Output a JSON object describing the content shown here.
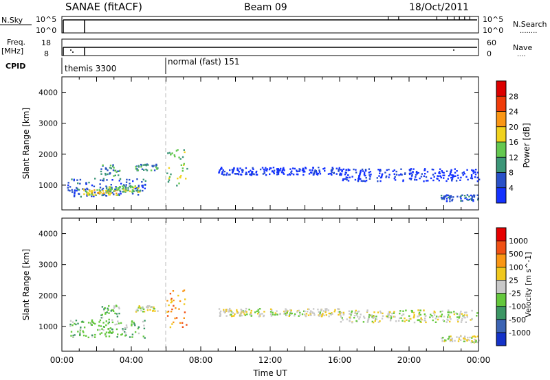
{
  "header": {
    "station": "SANAE (fitACF)",
    "beam": "Beam 09",
    "date": "18/Oct/2011"
  },
  "strip_nsky": {
    "label": "N.Sky",
    "left_ticks": [
      "10^5",
      "10^0"
    ],
    "right_ticks": [
      "10^5",
      "10^0"
    ],
    "right_label": "N.Search",
    "right_label_dots": "........"
  },
  "strip_freq": {
    "label_line1": "Freq.",
    "label_line2": "[MHz]",
    "left_ticks": [
      "18",
      "8"
    ],
    "right_ticks": [
      "60",
      "0"
    ],
    "right_label": "Nave",
    "right_label_dots": "...."
  },
  "cpid": {
    "label": "CPID",
    "segments": [
      {
        "name": "themis 3300",
        "start": 0.0,
        "end": 6.0
      },
      {
        "name": "normal (fast) 151",
        "start": 6.0,
        "end": 24.0
      }
    ]
  },
  "chart_data": [
    {
      "type": "heatmap",
      "panel": "power",
      "xlabel": "",
      "ylabel": "Slant Range [km]",
      "xlim": [
        0,
        24
      ],
      "ylim": [
        200,
        4500
      ],
      "yticks": [
        "1000",
        "2000",
        "3000",
        "4000"
      ],
      "colorbar": {
        "label": "Power [dB]",
        "tick_labels": [
          "4",
          "8",
          "12",
          "16",
          "20",
          "24",
          "28"
        ],
        "colors": [
          "#1432ff",
          "#2850c8",
          "#3c9678",
          "#64c850",
          "#f0d21e",
          "#fa9614",
          "#f03c0a",
          "#dc0000"
        ]
      },
      "regions": [
        {
          "t0": 0.3,
          "t1": 4.8,
          "r0": 650,
          "r1": 1250,
          "level": 1
        },
        {
          "t0": 1.2,
          "t1": 3.2,
          "r0": 700,
          "r1": 900,
          "level": 4
        },
        {
          "t0": 2.5,
          "t1": 4.5,
          "r0": 800,
          "r1": 1000,
          "level": 3
        },
        {
          "t0": 2.2,
          "t1": 3.3,
          "r0": 1300,
          "r1": 1700,
          "level": 2
        },
        {
          "t0": 4.2,
          "t1": 5.5,
          "r0": 1500,
          "r1": 1700,
          "level": 2
        },
        {
          "t0": 6.0,
          "t1": 7.2,
          "r0": 1000,
          "r1": 2200,
          "level": 3
        },
        {
          "t0": 9.0,
          "t1": 16.0,
          "r0": 1350,
          "r1": 1600,
          "level": 0
        },
        {
          "t0": 16.0,
          "t1": 24.0,
          "r0": 1150,
          "r1": 1550,
          "level": 0
        },
        {
          "t0": 21.8,
          "t1": 24.0,
          "r0": 500,
          "r1": 720,
          "level": 1
        }
      ]
    },
    {
      "type": "heatmap",
      "panel": "velocity",
      "xlabel": "Time UT",
      "ylabel": "Slant Range [km]",
      "xlim": [
        0,
        24
      ],
      "ylim": [
        200,
        4500
      ],
      "xticks": [
        "00:00",
        "04:00",
        "08:00",
        "12:00",
        "16:00",
        "20:00",
        "00:00"
      ],
      "yticks": [
        "1000",
        "2000",
        "3000",
        "4000"
      ],
      "colorbar": {
        "label": "Velocity [m s^-1]",
        "tick_labels": [
          "1000",
          "500",
          "100",
          "25",
          "-25",
          "-100",
          "-500",
          "-1000"
        ],
        "colors": [
          "#1432c8",
          "#3c64b4",
          "#3c9664",
          "#64c83c",
          "#c8c8c8",
          "#f0c81e",
          "#fa9614",
          "#f05014",
          "#e60000"
        ]
      },
      "regions": [
        {
          "t0": 0.3,
          "t1": 4.8,
          "r0": 650,
          "r1": 1250,
          "level": 3
        },
        {
          "t0": 2.2,
          "t1": 3.3,
          "r0": 1300,
          "r1": 1700,
          "level": 3
        },
        {
          "t0": 4.2,
          "t1": 5.5,
          "r0": 1500,
          "r1": 1700,
          "level": 4
        },
        {
          "t0": 6.0,
          "t1": 7.2,
          "r0": 1000,
          "r1": 2200,
          "level": 6
        },
        {
          "t0": 9.0,
          "t1": 16.0,
          "r0": 1350,
          "r1": 1600,
          "level": 4
        },
        {
          "t0": 16.0,
          "t1": 24.0,
          "r0": 1150,
          "r1": 1550,
          "level": 4
        },
        {
          "t0": 21.8,
          "t1": 24.0,
          "r0": 500,
          "r1": 720,
          "level": 4
        }
      ]
    }
  ]
}
